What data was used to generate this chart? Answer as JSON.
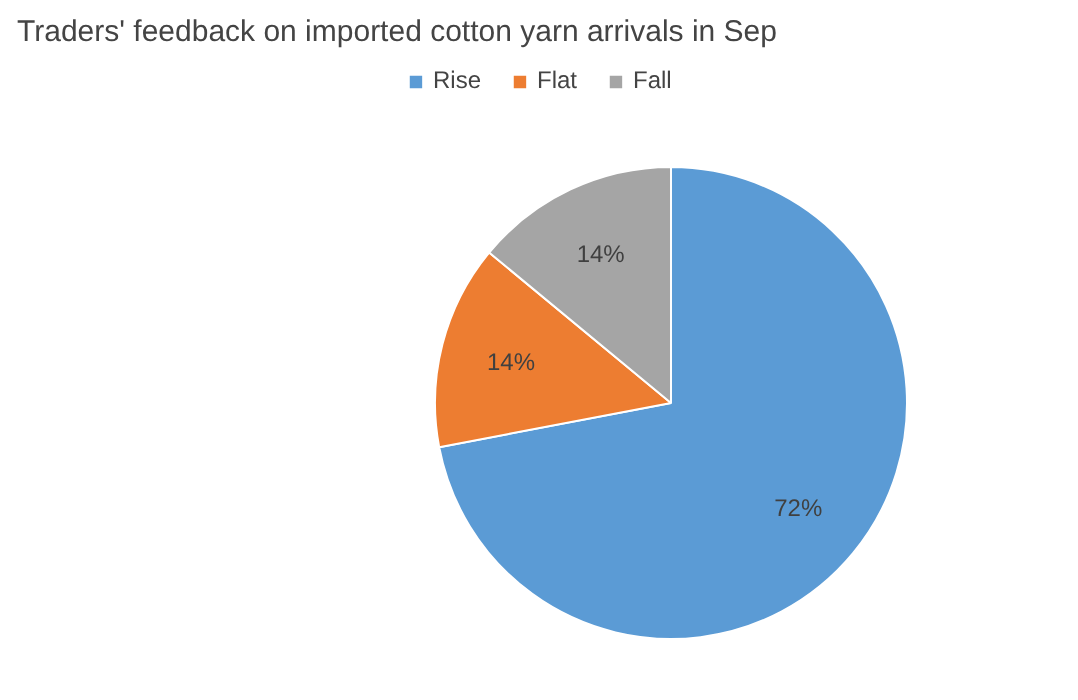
{
  "chart_data": {
    "type": "pie",
    "title": "Traders' feedback on imported cotton yarn arrivals in Sep",
    "categories": [
      "Rise",
      "Flat",
      "Fall"
    ],
    "values": [
      72,
      14,
      14
    ],
    "colors": [
      "#5b9bd5",
      "#ed7d31",
      "#a5a5a5"
    ],
    "value_labels": [
      "72%",
      "14%",
      "14%"
    ],
    "legend": "top"
  }
}
